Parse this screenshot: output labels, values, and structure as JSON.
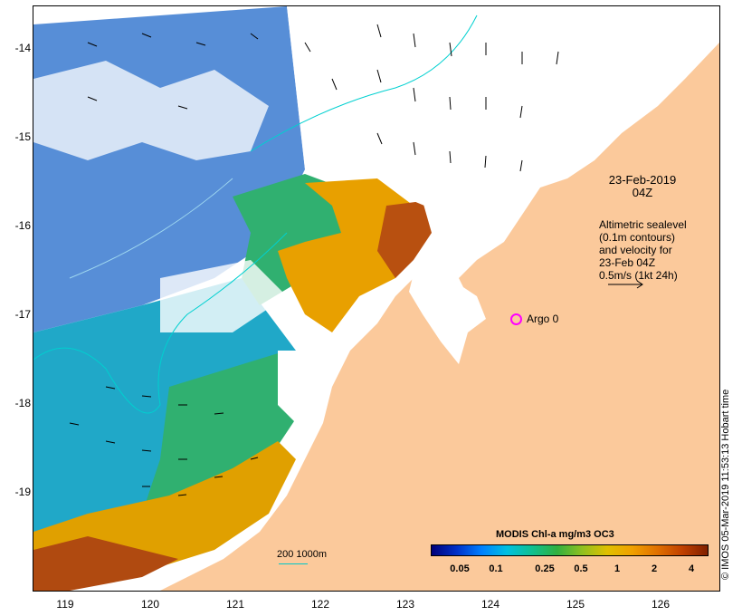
{
  "map": {
    "latitude_ticks": [
      "-14",
      "-15",
      "-16",
      "-17",
      "-18",
      "-19"
    ],
    "longitude_ticks": [
      "119",
      "120",
      "121",
      "122",
      "123",
      "124",
      "125",
      "126"
    ],
    "date_line1": "23-Feb-2019",
    "date_line2": "04Z",
    "legend_lines": [
      "Altimetric sealevel",
      "(0.1m contours)",
      "and velocity for",
      "23-Feb 04Z",
      "0.5m/s (1kt 24h)"
    ],
    "argo_label": "Argo 0",
    "scale_label": "200  1000m",
    "colorbar_title": "MODIS Chl-a mg/m3 OC3",
    "colorbar_ticks": [
      "0.05",
      "0.1",
      "0.25",
      "0.5",
      "1",
      "2",
      "4"
    ],
    "credit": "© IMOS 05-Mar-2019 11:53:13 Hobart time"
  },
  "colors": {
    "land": "#fbc99b",
    "cloud": "#ffffff",
    "contour": "#00d0d0",
    "argo": "#ff00ff"
  }
}
